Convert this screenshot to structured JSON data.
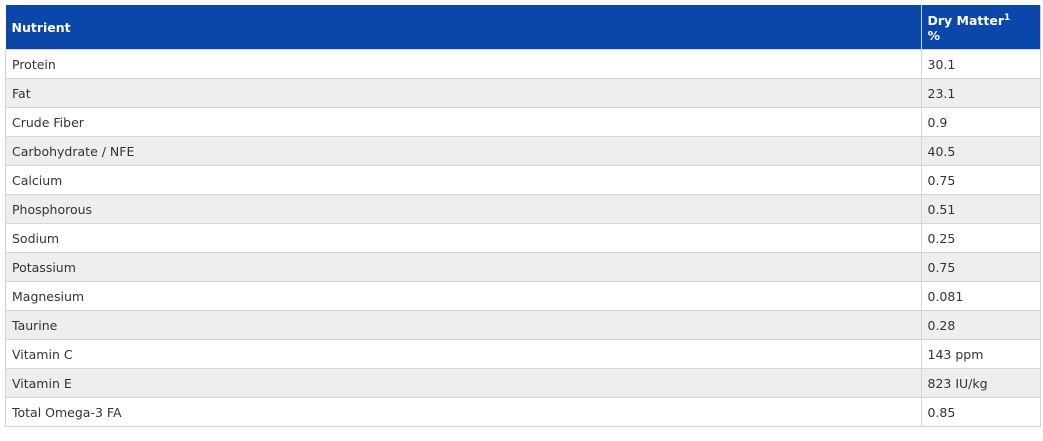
{
  "table": {
    "header": {
      "nutrient": "Nutrient",
      "dry_matter": "Dry Matter",
      "footnote": "1",
      "unit": "%"
    },
    "rows": [
      [
        "Protein",
        "30.1"
      ],
      [
        "Fat",
        "23.1"
      ],
      [
        "Crude Fiber",
        "0.9"
      ],
      [
        "Carbohydrate / NFE",
        "40.5"
      ],
      [
        "Calcium",
        "0.75"
      ],
      [
        "Phosphorous",
        "0.51"
      ],
      [
        "Sodium",
        "0.25"
      ],
      [
        "Potassium",
        "0.75"
      ],
      [
        "Magnesium",
        "0.081"
      ],
      [
        "Taurine",
        "0.28"
      ],
      [
        "Vitamin C",
        "143 ppm"
      ],
      [
        "Vitamin E",
        "823 IU/kg"
      ],
      [
        "Total Omega-3 FA",
        "0.85"
      ]
    ]
  }
}
